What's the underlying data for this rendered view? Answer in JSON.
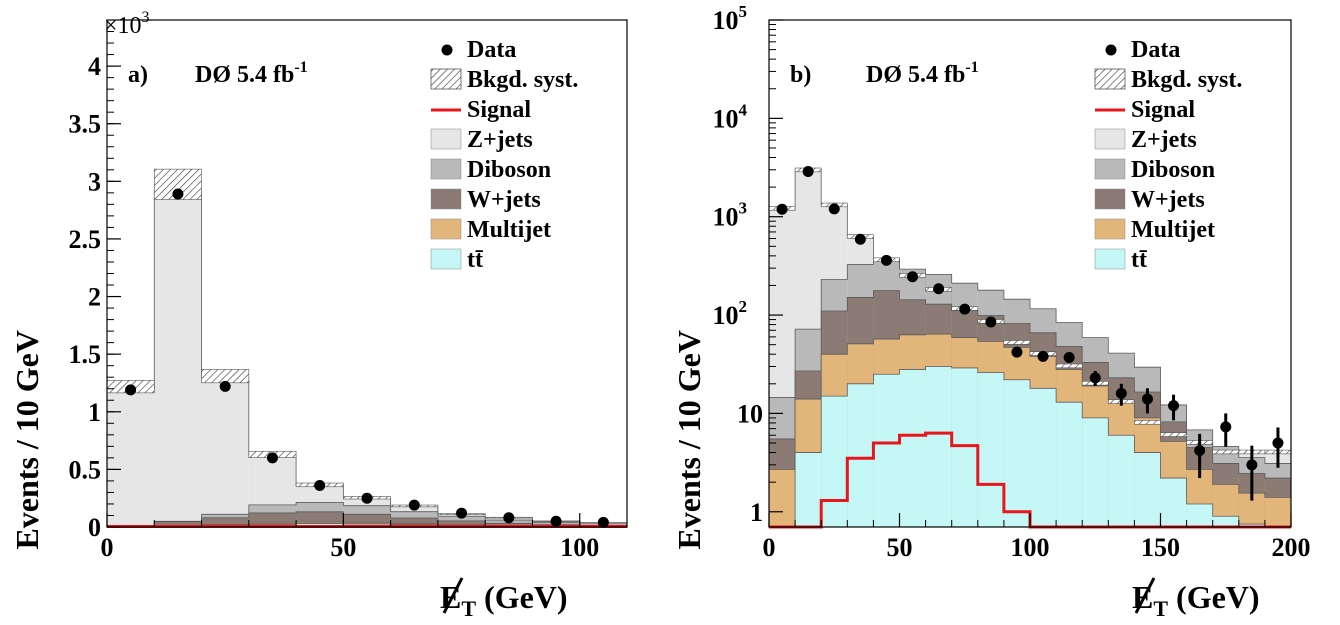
{
  "colors": {
    "zjets": "#e6e6e6",
    "diboson": "#b9b9b9",
    "wjets": "#8b7b74",
    "multijet": "#e2b67a",
    "ttbar": "#c6f7f7",
    "signal": "#e8161c",
    "data": "#000000"
  },
  "legend": {
    "data": "Data",
    "syst": "Bkgd. syst.",
    "signal": "Signal",
    "zjets": "Z+jets",
    "diboson": "Diboson",
    "wjets": "W+jets",
    "multijet": "Multijet",
    "ttbar": "tt̄"
  },
  "chart_data": [
    {
      "type": "bar",
      "panel": "a)",
      "experiment": "DØ 5.4 fb",
      "lumi_exp": "-1",
      "multiplier": "×10",
      "multiplier_exp": "3",
      "ylabel": "Events / 10 GeV",
      "xlabel": "E",
      "xlabel_sub": "T",
      "xlabel_unit": " (GeV)",
      "xlim": [
        0,
        110
      ],
      "ylim": [
        0,
        4.4
      ],
      "ylog": false,
      "legend_position": "top-right",
      "xticks": [
        {
          "v": 0,
          "t": "0"
        },
        {
          "v": 50,
          "t": "50"
        },
        {
          "v": 100,
          "t": "100"
        }
      ],
      "yticks": [
        {
          "v": 0,
          "t": "0"
        },
        {
          "v": 0.5,
          "t": "0.5"
        },
        {
          "v": 1,
          "t": "1"
        },
        {
          "v": 1.5,
          "t": "1.5"
        },
        {
          "v": 2,
          "t": "2"
        },
        {
          "v": 2.5,
          "t": "2.5"
        },
        {
          "v": 3,
          "t": "3"
        },
        {
          "v": 3.5,
          "t": "3.5"
        },
        {
          "v": 4,
          "t": "4"
        }
      ],
      "bin_edges": [
        0,
        10,
        20,
        30,
        40,
        50,
        60,
        70,
        80,
        90,
        100,
        110
      ],
      "stack": {
        "ttbar": [
          0,
          0.002,
          0.01,
          0.02,
          0.03,
          0.025,
          0.02,
          0.012,
          0.008,
          0.004,
          0.002
        ],
        "multijet": [
          0,
          0.004,
          0.01,
          0.012,
          0.012,
          0.01,
          0.008,
          0.006,
          0.004,
          0.002,
          0.001
        ],
        "wjets": [
          0,
          0.04,
          0.06,
          0.09,
          0.09,
          0.075,
          0.05,
          0.035,
          0.02,
          0.014,
          0.01
        ],
        "diboson": [
          0.001,
          0.004,
          0.03,
          0.07,
          0.08,
          0.075,
          0.055,
          0.04,
          0.028,
          0.02,
          0.015
        ],
        "total": [
          1.2,
          2.93,
          1.29,
          0.62,
          0.36,
          0.25,
          0.18,
          0.11,
          0.08,
          0.05,
          0.04
        ]
      },
      "signal": [
        0.004,
        0.004,
        0.004,
        0.004,
        0.004,
        0.004,
        0.004,
        0.004,
        0.004,
        0.004,
        0.004
      ],
      "data": [
        {
          "x": 5,
          "y": 1.19
        },
        {
          "x": 15,
          "y": 2.89
        },
        {
          "x": 25,
          "y": 1.22
        },
        {
          "x": 35,
          "y": 0.6
        },
        {
          "x": 45,
          "y": 0.36
        },
        {
          "x": 55,
          "y": 0.25
        },
        {
          "x": 65,
          "y": 0.19
        },
        {
          "x": 75,
          "y": 0.12
        },
        {
          "x": 85,
          "y": 0.08
        },
        {
          "x": 95,
          "y": 0.05
        },
        {
          "x": 105,
          "y": 0.04
        }
      ]
    },
    {
      "type": "bar",
      "panel": "b)",
      "experiment": "DØ 5.4 fb",
      "lumi_exp": "-1",
      "ylabel": "Events / 10 GeV",
      "xlabel": "E",
      "xlabel_sub": "T",
      "xlabel_unit": " (GeV)",
      "xlim": [
        0,
        200
      ],
      "ylim": [
        0.7,
        100000
      ],
      "ylog": true,
      "legend_position": "top-right",
      "xticks": [
        {
          "v": 0,
          "t": "0"
        },
        {
          "v": 50,
          "t": "50"
        },
        {
          "v": 100,
          "t": "100"
        },
        {
          "v": 150,
          "t": "150"
        },
        {
          "v": 200,
          "t": "200"
        }
      ],
      "yticks": [
        {
          "v": 1,
          "t": "1",
          "sup": ""
        },
        {
          "v": 10,
          "t": "10",
          "sup": ""
        },
        {
          "v": 100,
          "t": "10",
          "sup": "2"
        },
        {
          "v": 1000,
          "t": "10",
          "sup": "3"
        },
        {
          "v": 10000,
          "t": "10",
          "sup": "4"
        },
        {
          "v": 100000,
          "t": "10",
          "sup": "5"
        }
      ],
      "bin_edges": [
        0,
        10,
        20,
        30,
        40,
        50,
        60,
        70,
        80,
        90,
        100,
        110,
        120,
        130,
        140,
        150,
        160,
        170,
        180,
        190,
        200
      ],
      "stack": {
        "ttbar": [
          0.4,
          4,
          15,
          20,
          25,
          28,
          30,
          29,
          26,
          22,
          18,
          13,
          9,
          6,
          4,
          2.2,
          1.2,
          0.9,
          0.75,
          0.7
        ],
        "multijet": [
          2.3,
          10,
          25,
          31,
          32,
          35,
          34,
          30,
          28,
          25,
          20,
          15,
          10,
          7,
          5,
          3,
          1.5,
          1.0,
          0.8,
          0.7
        ],
        "wjets": [
          2.8,
          13,
          70,
          100,
          120,
          80,
          65,
          52,
          45,
          35,
          28,
          20,
          14,
          10,
          7.5,
          3.0,
          1.8,
          1.2,
          0.9,
          0.8
        ],
        "diboson": [
          9,
          45,
          120,
          175,
          200,
          150,
          130,
          100,
          80,
          63,
          50,
          36,
          26,
          18,
          13,
          4.0,
          2.3,
          1.5,
          1.1,
          0.9
        ],
        "total": [
          1200,
          2950,
          1300,
          620,
          360,
          250,
          180,
          115,
          85,
          52,
          40,
          30,
          20,
          13,
          8,
          6,
          5,
          4,
          4,
          4
        ]
      },
      "signal": [
        0.5,
        0.5,
        1.3,
        3.5,
        5.0,
        6.0,
        6.3,
        4.7,
        1.9,
        1.0,
        0.5,
        0.5,
        0.5,
        0.5,
        0.5,
        0.5,
        0.5,
        0.5,
        0.5,
        0.5
      ],
      "data": [
        {
          "x": 5,
          "y": 1190,
          "err": 0
        },
        {
          "x": 15,
          "y": 2880,
          "err": 0
        },
        {
          "x": 25,
          "y": 1200,
          "err": 0
        },
        {
          "x": 35,
          "y": 590,
          "err": 0
        },
        {
          "x": 45,
          "y": 360,
          "err": 0
        },
        {
          "x": 55,
          "y": 245,
          "err": 0
        },
        {
          "x": 65,
          "y": 185,
          "err": 0
        },
        {
          "x": 75,
          "y": 115,
          "err": 0
        },
        {
          "x": 85,
          "y": 85,
          "err": 0
        },
        {
          "x": 95,
          "y": 42,
          "err": 0
        },
        {
          "x": 105,
          "y": 38,
          "err": 0
        },
        {
          "x": 115,
          "y": 37,
          "err": 0
        },
        {
          "x": 125,
          "y": 23,
          "err": 4
        },
        {
          "x": 135,
          "y": 16,
          "err": 4
        },
        {
          "x": 145,
          "y": 14,
          "err": 4
        },
        {
          "x": 155,
          "y": 12,
          "err": 3.5
        },
        {
          "x": 165,
          "y": 4.2,
          "err": 2
        },
        {
          "x": 175,
          "y": 7.3,
          "err": 2.7
        },
        {
          "x": 185,
          "y": 3.0,
          "err": 1.7
        },
        {
          "x": 195,
          "y": 5.0,
          "err": 2.2
        }
      ]
    }
  ]
}
